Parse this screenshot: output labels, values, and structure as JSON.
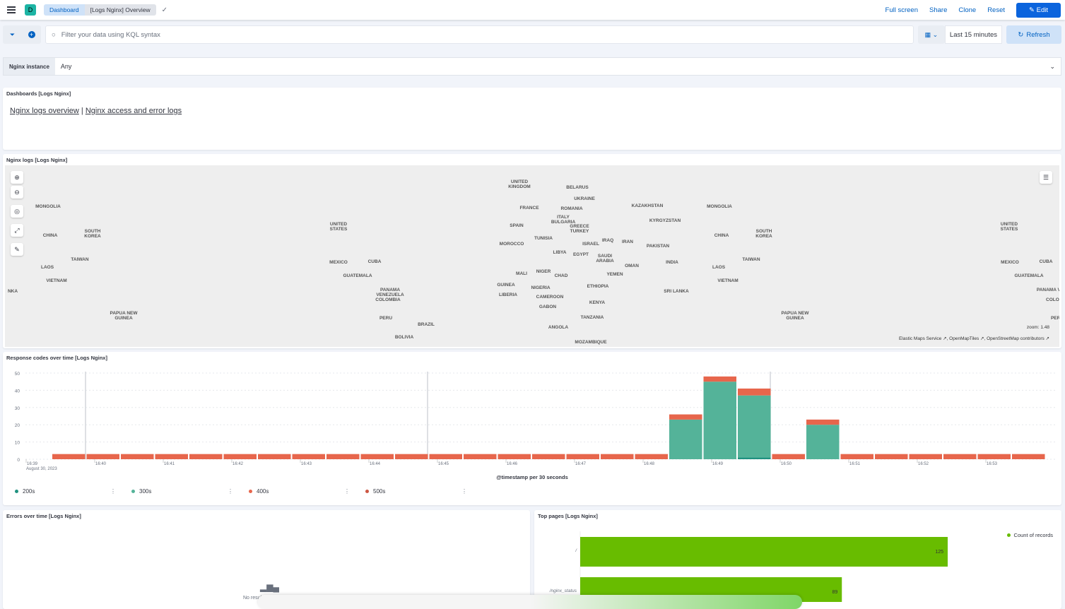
{
  "header": {
    "breadcrumbs": [
      "Dashboard",
      "[Logs Nginx] Overview"
    ],
    "logo_letter": "D",
    "actions": [
      "Full screen",
      "Share",
      "Clone",
      "Reset"
    ],
    "edit_label": "Edit"
  },
  "query": {
    "placeholder": "Filter your data using KQL syntax",
    "time_range": "Last 15 minutes",
    "refresh_label": "Refresh"
  },
  "control": {
    "label": "Nginx instance",
    "value": "Any"
  },
  "dashboards_panel": {
    "title": "Dashboards [Logs Nginx]",
    "links": [
      "Nginx logs overview",
      "Nginx access and error logs"
    ],
    "separator": "|"
  },
  "map_panel": {
    "title": "Nginx logs [Logs Nginx]",
    "zoom_label": "zoom: 1.48",
    "attribution": [
      "Elastic Maps Service",
      "OpenMapTiles",
      "OpenStreetMap contributors"
    ],
    "labels": [
      [
        "UNITED KINGDOM",
        728,
        20
      ],
      [
        "BELARUS",
        810,
        28
      ],
      [
        "UKRAINE",
        820,
        44
      ],
      [
        "KAZAKHSTAN",
        909,
        54
      ],
      [
        "MONGOLIA",
        1011,
        55
      ],
      [
        "MONGOLIA",
        61,
        55
      ],
      [
        "FRANCE",
        742,
        57
      ],
      [
        "ROMANIA",
        802,
        58
      ],
      [
        "ITALY BULGARIA",
        790,
        70
      ],
      [
        "KYRGYZSTAN",
        934,
        75
      ],
      [
        "SPAIN",
        724,
        82
      ],
      [
        "GREECE TURKEY",
        813,
        83
      ],
      [
        "UNITED STATES",
        472,
        80
      ],
      [
        "UNITED STATES",
        1421,
        80
      ],
      [
        "CHINA",
        64,
        96
      ],
      [
        "CHINA",
        1014,
        96
      ],
      [
        "SOUTH KOREA",
        124,
        90
      ],
      [
        "SOUTH KOREA",
        1074,
        90
      ],
      [
        "TUNISIA",
        762,
        100
      ],
      [
        "ISRAEL",
        829,
        108
      ],
      [
        "IRAQ",
        853,
        103
      ],
      [
        "IRAN",
        881,
        105
      ],
      [
        "PAKISTAN",
        924,
        111
      ],
      [
        "MOROCCO",
        717,
        108
      ],
      [
        "LIBYA",
        785,
        120
      ],
      [
        "EGYPT",
        815,
        123
      ],
      [
        "SAUDI ARABIA",
        849,
        125
      ],
      [
        "INDIA",
        944,
        134
      ],
      [
        "MEXICO",
        472,
        134
      ],
      [
        "MEXICO",
        1422,
        134
      ],
      [
        "CUBA",
        523,
        133
      ],
      [
        "CUBA",
        1473,
        133
      ],
      [
        "TAIWAN",
        106,
        130
      ],
      [
        "TAIWAN",
        1056,
        130
      ],
      [
        "LAOS",
        60,
        141
      ],
      [
        "LAOS",
        1010,
        141
      ],
      [
        "OMAN",
        887,
        139
      ],
      [
        "NIGER",
        762,
        147
      ],
      [
        "MALI",
        731,
        150
      ],
      [
        "CHAD",
        787,
        153
      ],
      [
        "YEMEN",
        863,
        151
      ],
      [
        "GUATEMALA",
        499,
        153
      ],
      [
        "GUATEMALA",
        1449,
        153
      ],
      [
        "VIETNAM",
        73,
        160
      ],
      [
        "VIETNAM",
        1023,
        160
      ],
      [
        "GUINEA",
        709,
        166
      ],
      [
        "NIGERIA",
        758,
        170
      ],
      [
        "ETHIOPIA",
        839,
        168
      ],
      [
        "SRI LANKA",
        950,
        175
      ],
      [
        "PANAMA VENEZUELA",
        545,
        173
      ],
      [
        "LIBERIA",
        712,
        180
      ],
      [
        "CAMEROON",
        771,
        183
      ],
      [
        "COLOMBIA",
        542,
        187
      ],
      [
        "KENYA",
        838,
        191
      ],
      [
        "GABON",
        768,
        197
      ],
      [
        "PAPUA NEW GUINEA",
        168,
        206
      ],
      [
        "PAPUA NEW GUINEA",
        1118,
        206
      ],
      [
        "PERU",
        539,
        213
      ],
      [
        "TANZANIA",
        831,
        212
      ],
      [
        "BRAZIL",
        596,
        222
      ],
      [
        "ANGOLA",
        783,
        226
      ],
      [
        "BOLIVIA",
        565,
        240
      ],
      [
        "MOZAMBIQUE",
        829,
        247
      ],
      [
        "NKA",
        11,
        175
      ],
      [
        "PANAMA VE",
        1479,
        173
      ],
      [
        "COLOMI",
        1486,
        187
      ],
      [
        "PERU",
        1489,
        213
      ]
    ]
  },
  "response_panel": {
    "title": "Response codes over time [Logs Nginx]",
    "chart_data": {
      "type": "bar",
      "stacked": true,
      "xlabel": "@timestamp per 30 seconds",
      "ylim": [
        0,
        50
      ],
      "yticks": [
        0,
        10,
        20,
        30,
        40,
        50
      ],
      "grid": true,
      "legend": "bottom",
      "x_ticks": [
        "16:39",
        "16:40",
        "16:41",
        "16:42",
        "16:43",
        "16:44",
        "16:45",
        "16:46",
        "16:47",
        "16:48",
        "16:49",
        "16:50",
        "16:51",
        "16:52",
        "16:53"
      ],
      "x_date_label": "August 30, 2023",
      "categories": [
        "16:39:30",
        "16:40:00",
        "16:40:30",
        "16:41:00",
        "16:41:30",
        "16:42:00",
        "16:42:30",
        "16:43:00",
        "16:43:30",
        "16:44:00",
        "16:44:30",
        "16:45:00",
        "16:45:30",
        "16:46:00",
        "16:46:30",
        "16:47:00",
        "16:47:30",
        "16:48:00",
        "16:48:30",
        "16:49:00",
        "16:49:30",
        "16:50:00",
        "16:50:30",
        "16:51:00",
        "16:51:30",
        "16:52:00",
        "16:52:30",
        "16:53:00",
        "16:53:30"
      ],
      "series": [
        {
          "name": "200s",
          "color": "#209280",
          "values": [
            0,
            0,
            0,
            0,
            0,
            0,
            0,
            0,
            0,
            0,
            0,
            0,
            0,
            0,
            0,
            0,
            0,
            0,
            0,
            0,
            1,
            0,
            0,
            0,
            0,
            0,
            0,
            0,
            0
          ]
        },
        {
          "name": "300s",
          "color": "#54b399",
          "values": [
            0,
            0,
            0,
            0,
            0,
            0,
            0,
            0,
            0,
            0,
            0,
            0,
            0,
            0,
            0,
            0,
            0,
            0,
            23,
            45,
            36,
            0,
            20,
            0,
            0,
            0,
            0,
            0,
            0
          ]
        },
        {
          "name": "400s",
          "color": "#e7664c",
          "values": [
            3,
            3,
            3,
            3,
            3,
            3,
            3,
            3,
            3,
            3,
            3,
            3,
            3,
            3,
            3,
            3,
            3,
            3,
            3,
            3,
            4,
            3,
            3,
            3,
            3,
            3,
            3,
            3,
            3
          ]
        },
        {
          "name": "500s",
          "color": "#da8b45",
          "values": [
            0,
            0,
            0,
            0,
            0,
            0,
            0,
            0,
            0,
            0,
            0,
            0,
            0,
            0,
            0,
            0,
            0,
            0,
            0,
            0,
            0,
            0,
            0,
            0,
            0,
            0,
            0,
            0,
            0
          ]
        }
      ]
    }
  },
  "errors_panel": {
    "title": "Errors over time [Logs Nginx]",
    "empty_text": "No results found"
  },
  "top_pages_panel": {
    "title": "Top pages [Logs Nginx]",
    "chart_data": {
      "type": "bar",
      "orientation": "horizontal",
      "categories": [
        "/",
        "/nginx_status"
      ],
      "series": [
        {
          "name": "Count of records",
          "color": "#68bc00",
          "values": [
            125,
            89
          ]
        }
      ],
      "legend": "top-right"
    }
  }
}
